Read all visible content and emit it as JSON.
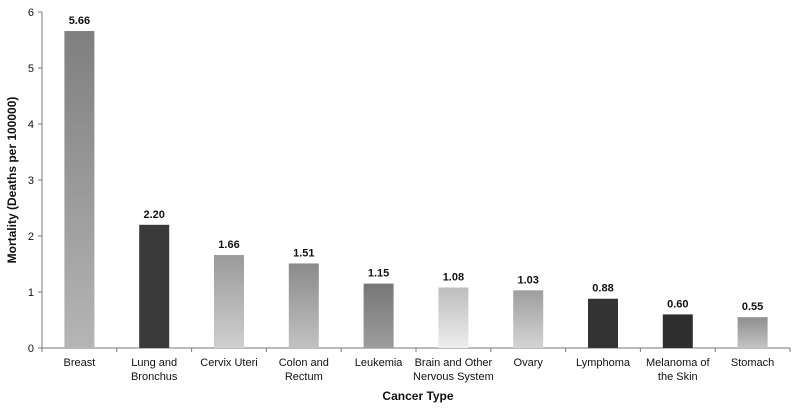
{
  "chart_data": {
    "type": "bar",
    "title": "",
    "xlabel": "Cancer Type",
    "ylabel": "Mortality (Deaths per 100000)",
    "ylim": [
      0,
      6
    ],
    "yticks": [
      0,
      1,
      2,
      3,
      4,
      5,
      6
    ],
    "grid": false,
    "legend": "none",
    "categories": [
      [
        "Breast"
      ],
      [
        "Lung and",
        "Bronchus"
      ],
      [
        "Cervix Uteri"
      ],
      [
        "Colon and",
        "Rectum"
      ],
      [
        "Leukemia"
      ],
      [
        "Brain and Other",
        "Nervous System"
      ],
      [
        "Ovary"
      ],
      [
        "Lymphoma"
      ],
      [
        "Melanoma of",
        "the Skin"
      ],
      [
        "Stomach"
      ]
    ],
    "values": [
      5.66,
      2.2,
      1.66,
      1.51,
      1.15,
      1.08,
      1.03,
      0.88,
      0.6,
      0.55
    ],
    "data_labels": [
      "5.66",
      "2.20",
      "1.66",
      "1.51",
      "1.15",
      "1.08",
      "1.03",
      "0.88",
      "0.60",
      "0.55"
    ],
    "bar_styles": [
      {
        "top": "#7f7f7f",
        "bottom": "#b5b5b5"
      },
      {
        "top": "#3a3a3a",
        "bottom": "#3a3a3a"
      },
      {
        "top": "#9a9a9a",
        "bottom": "#cfcfcf"
      },
      {
        "top": "#8a8a8a",
        "bottom": "#c2c2c2"
      },
      {
        "top": "#777777",
        "bottom": "#9c9c9c"
      },
      {
        "top": "#bdbdbd",
        "bottom": "#ededed"
      },
      {
        "top": "#9e9e9e",
        "bottom": "#d4d4d4"
      },
      {
        "top": "#333333",
        "bottom": "#333333"
      },
      {
        "top": "#2e2e2e",
        "bottom": "#2e2e2e"
      },
      {
        "top": "#8e8e8e",
        "bottom": "#c4c4c4"
      }
    ],
    "axis_color": "#777777"
  }
}
